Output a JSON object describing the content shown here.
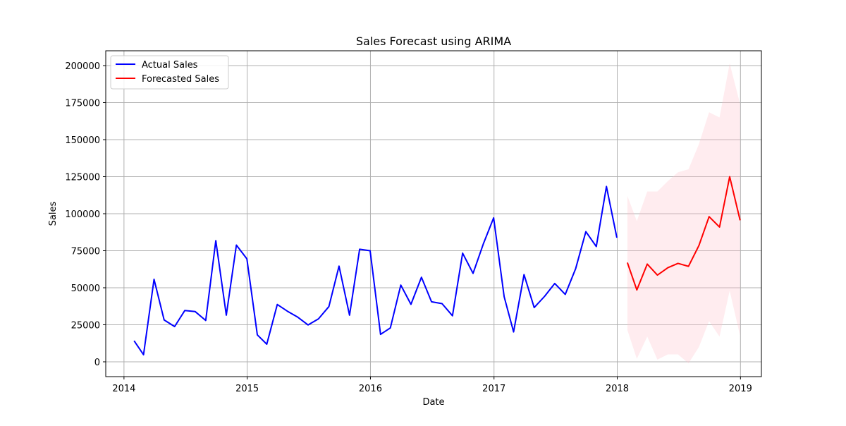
{
  "chart_data": {
    "type": "line",
    "title": "Sales Forecast using ARIMA",
    "xlabel": "Date",
    "ylabel": "Sales",
    "xlim": [
      "2013-11-08",
      "2019-03-04"
    ],
    "ylim": [
      -10000,
      210000
    ],
    "grid": true,
    "legend_position": "top-left",
    "x_ticks": [
      {
        "date": "2014-01-01",
        "label": "2014"
      },
      {
        "date": "2015-01-01",
        "label": "2015"
      },
      {
        "date": "2016-01-01",
        "label": "2016"
      },
      {
        "date": "2017-01-01",
        "label": "2017"
      },
      {
        "date": "2018-01-01",
        "label": "2018"
      },
      {
        "date": "2019-01-01",
        "label": "2019"
      }
    ],
    "y_ticks": [
      0,
      25000,
      50000,
      75000,
      100000,
      125000,
      150000,
      175000,
      200000
    ],
    "series": [
      {
        "name": "Actual Sales",
        "color": "#0000ff",
        "x": [
          "2014-01-31",
          "2014-02-28",
          "2014-03-31",
          "2014-04-30",
          "2014-05-31",
          "2014-06-30",
          "2014-07-31",
          "2014-08-31",
          "2014-09-30",
          "2014-10-31",
          "2014-11-30",
          "2014-12-31",
          "2015-01-31",
          "2015-02-28",
          "2015-03-31",
          "2015-04-30",
          "2015-05-31",
          "2015-06-30",
          "2015-07-31",
          "2015-08-31",
          "2015-09-30",
          "2015-10-31",
          "2015-11-30",
          "2015-12-31",
          "2016-01-31",
          "2016-02-29",
          "2016-03-31",
          "2016-04-30",
          "2016-05-31",
          "2016-06-30",
          "2016-07-31",
          "2016-08-31",
          "2016-09-30",
          "2016-10-31",
          "2016-11-30",
          "2016-12-31",
          "2017-01-31",
          "2017-02-28",
          "2017-03-31",
          "2017-04-30",
          "2017-05-31",
          "2017-06-30",
          "2017-07-31",
          "2017-08-31",
          "2017-09-30",
          "2017-10-31",
          "2017-11-30",
          "2017-12-31"
        ],
        "y": [
          14200,
          4800,
          55700,
          28300,
          23800,
          34600,
          33900,
          27900,
          81800,
          31500,
          78800,
          69500,
          18200,
          11900,
          38700,
          34200,
          30100,
          24900,
          29000,
          37300,
          64600,
          31500,
          76000,
          75000,
          18500,
          22900,
          51800,
          38800,
          57100,
          40500,
          39300,
          31100,
          73400,
          59700,
          79400,
          97200,
          44000,
          20200,
          58900,
          36600,
          44300,
          52900,
          45500,
          63000,
          87900,
          77800,
          118400,
          83800
        ]
      },
      {
        "name": "Forecasted Sales",
        "color": "#ff0000",
        "x": [
          "2018-01-31",
          "2018-02-28",
          "2018-03-31",
          "2018-04-30",
          "2018-05-31",
          "2018-06-30",
          "2018-07-31",
          "2018-08-31",
          "2018-09-30",
          "2018-10-31",
          "2018-11-30",
          "2018-12-31"
        ],
        "y": [
          67000,
          48500,
          66000,
          58500,
          63500,
          66500,
          64500,
          78500,
          98000,
          91000,
          125000,
          95500
        ],
        "interval_color": "#ffc0cb",
        "lower": [
          21500,
          2000,
          17000,
          1500,
          5000,
          5000,
          -1000,
          10000,
          27500,
          17000,
          48000,
          17500
        ],
        "upper": [
          112000,
          95000,
          115000,
          115000,
          122000,
          128000,
          130000,
          147000,
          168500,
          165000,
          201500,
          174000
        ]
      }
    ]
  }
}
